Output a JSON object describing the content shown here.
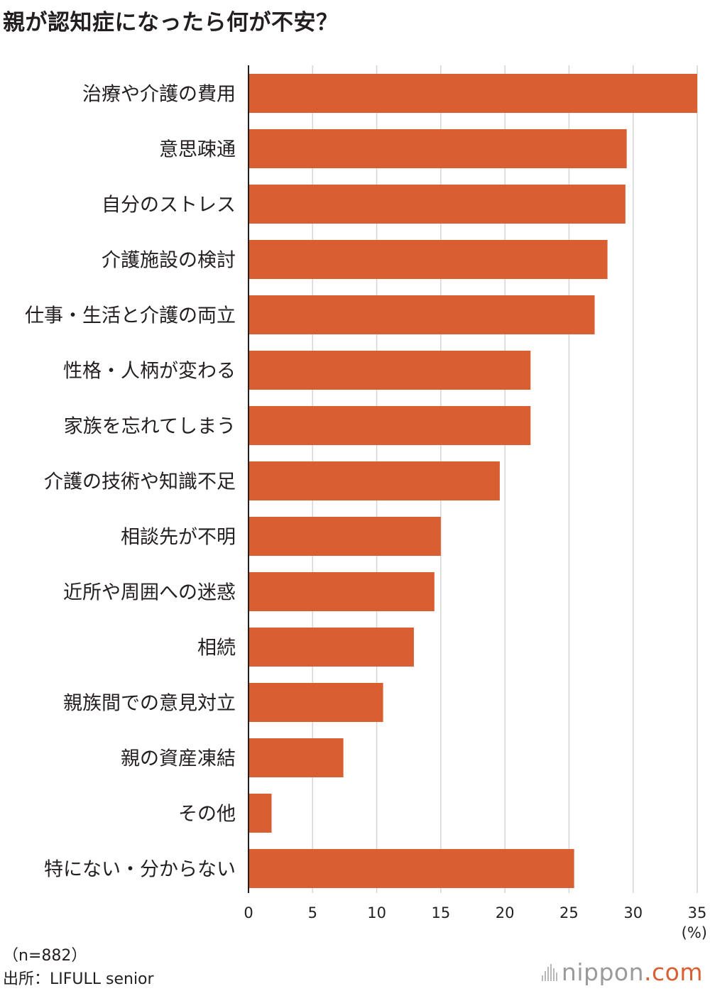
{
  "colors": {
    "bar": "#d95f33",
    "grid": "#d4d4d4",
    "axis": "#231f20",
    "text": "#231f20"
  },
  "chart_data": {
    "type": "bar",
    "orientation": "horizontal",
    "title": "親が認知症になったら何が不安？",
    "categories": [
      "治療や介護の費用",
      "意思疎通",
      "自分のストレス",
      "介護施設の検討",
      "仕事・生活と介護の両立",
      "性格・人柄が変わる",
      "家族を忘れてしまう",
      "介護の技術や知識不足",
      "相談先が不明",
      "近所や周囲への迷惑",
      "相続",
      "親族間での意見対立",
      "親の資産凍結",
      "その他",
      "特にない・分からない"
    ],
    "values": [
      35.0,
      29.5,
      29.4,
      28.0,
      27.0,
      22.0,
      22.0,
      19.6,
      15.0,
      14.5,
      12.9,
      10.5,
      7.4,
      1.8,
      25.4
    ],
    "xlim": [
      0,
      35
    ],
    "xticks": [
      "0",
      "5",
      "10",
      "15",
      "20",
      "25",
      "30",
      "35"
    ],
    "unit": "(%)",
    "grid": true
  },
  "notes": {
    "sample": "（n=882）",
    "source": "出所：LIFULL senior"
  },
  "logo": {
    "brand": "nippon",
    "suffix": ".com"
  }
}
